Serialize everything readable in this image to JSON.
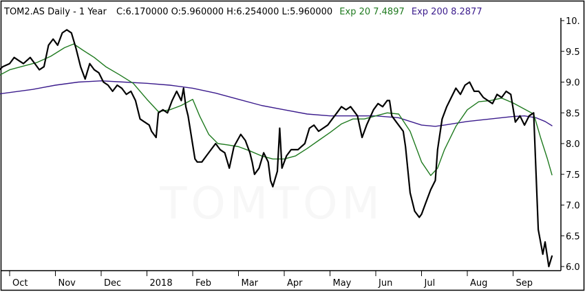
{
  "header": {
    "title": "TOM2.AS Daily -  1 Year",
    "ohlc": "C:6.170000 O:5.960000 H:6.254000 L:5.960000",
    "ema20_label": "Exp 20 7.4897",
    "ema200_label": "Exp 200 8.2877"
  },
  "watermark": "TOMTOM",
  "colors": {
    "price": "#000000",
    "ema20": "#1f7a1f",
    "ema200": "#3a1a8c",
    "frame": "#000000"
  },
  "chart_data": {
    "type": "line",
    "title": "TOM2.AS Daily -  1 Year",
    "ylim": [
      6.0,
      10.0
    ],
    "y_ticks": [
      "10.",
      "9.5",
      "9.0",
      "8.5",
      "8.0",
      "7.5",
      "7.0",
      "6.5",
      "6.0"
    ],
    "x_ticks": [
      "Oct",
      "Nov",
      "Dec",
      "2018",
      "Feb",
      "Mar",
      "Apr",
      "May",
      "Jun",
      "Jul",
      "Aug",
      "Sep"
    ],
    "x_domain": [
      0,
      12
    ],
    "grid": false,
    "series": [
      {
        "name": "TOM2.AS",
        "key": "price",
        "points": [
          [
            -0.3,
            9.15
          ],
          [
            -0.15,
            9.25
          ],
          [
            0.0,
            9.3
          ],
          [
            0.1,
            9.4
          ],
          [
            0.2,
            9.35
          ],
          [
            0.3,
            9.3
          ],
          [
            0.45,
            9.4
          ],
          [
            0.55,
            9.3
          ],
          [
            0.65,
            9.2
          ],
          [
            0.75,
            9.25
          ],
          [
            0.85,
            9.6
          ],
          [
            0.95,
            9.7
          ],
          [
            1.05,
            9.6
          ],
          [
            1.15,
            9.8
          ],
          [
            1.25,
            9.85
          ],
          [
            1.35,
            9.8
          ],
          [
            1.45,
            9.55
          ],
          [
            1.55,
            9.25
          ],
          [
            1.65,
            9.05
          ],
          [
            1.75,
            9.3
          ],
          [
            1.85,
            9.2
          ],
          [
            1.95,
            9.15
          ],
          [
            2.05,
            9.0
          ],
          [
            2.15,
            8.95
          ],
          [
            2.25,
            8.85
          ],
          [
            2.35,
            8.95
          ],
          [
            2.45,
            8.9
          ],
          [
            2.55,
            8.8
          ],
          [
            2.65,
            8.85
          ],
          [
            2.75,
            8.7
          ],
          [
            2.85,
            8.4
          ],
          [
            2.95,
            8.35
          ],
          [
            3.05,
            8.3
          ],
          [
            3.1,
            8.2
          ],
          [
            3.2,
            8.1
          ],
          [
            3.25,
            8.5
          ],
          [
            3.35,
            8.55
          ],
          [
            3.45,
            8.5
          ],
          [
            3.55,
            8.7
          ],
          [
            3.65,
            8.85
          ],
          [
            3.75,
            8.7
          ],
          [
            3.8,
            8.9
          ],
          [
            3.85,
            8.6
          ],
          [
            3.9,
            8.45
          ],
          [
            4.05,
            7.75
          ],
          [
            4.1,
            7.7
          ],
          [
            4.2,
            7.7
          ],
          [
            4.3,
            7.8
          ],
          [
            4.4,
            7.9
          ],
          [
            4.5,
            8.0
          ],
          [
            4.6,
            7.9
          ],
          [
            4.7,
            7.85
          ],
          [
            4.8,
            7.6
          ],
          [
            4.9,
            7.95
          ],
          [
            5.05,
            8.15
          ],
          [
            5.15,
            8.05
          ],
          [
            5.25,
            7.85
          ],
          [
            5.3,
            7.7
          ],
          [
            5.35,
            7.5
          ],
          [
            5.45,
            7.6
          ],
          [
            5.55,
            7.85
          ],
          [
            5.65,
            7.7
          ],
          [
            5.7,
            7.4
          ],
          [
            5.75,
            7.3
          ],
          [
            5.85,
            7.55
          ],
          [
            5.9,
            8.25
          ],
          [
            5.95,
            7.6
          ],
          [
            6.05,
            7.8
          ],
          [
            6.15,
            7.9
          ],
          [
            6.3,
            7.9
          ],
          [
            6.45,
            8.0
          ],
          [
            6.55,
            8.25
          ],
          [
            6.65,
            8.3
          ],
          [
            6.75,
            8.2
          ],
          [
            6.85,
            8.25
          ],
          [
            6.95,
            8.3
          ],
          [
            7.05,
            8.4
          ],
          [
            7.15,
            8.5
          ],
          [
            7.25,
            8.6
          ],
          [
            7.35,
            8.55
          ],
          [
            7.45,
            8.6
          ],
          [
            7.5,
            8.55
          ],
          [
            7.6,
            8.45
          ],
          [
            7.7,
            8.1
          ],
          [
            7.8,
            8.3
          ],
          [
            7.95,
            8.55
          ],
          [
            8.05,
            8.65
          ],
          [
            8.15,
            8.6
          ],
          [
            8.25,
            8.7
          ],
          [
            8.3,
            8.7
          ],
          [
            8.35,
            8.45
          ],
          [
            8.45,
            8.35
          ],
          [
            8.6,
            8.2
          ],
          [
            8.65,
            7.95
          ],
          [
            8.75,
            7.2
          ],
          [
            8.85,
            6.9
          ],
          [
            8.95,
            6.8
          ],
          [
            9.0,
            6.85
          ],
          [
            9.1,
            7.05
          ],
          [
            9.2,
            7.25
          ],
          [
            9.3,
            7.4
          ],
          [
            9.35,
            7.9
          ],
          [
            9.45,
            8.4
          ],
          [
            9.55,
            8.6
          ],
          [
            9.65,
            8.75
          ],
          [
            9.75,
            8.9
          ],
          [
            9.85,
            8.8
          ],
          [
            9.95,
            8.95
          ],
          [
            10.05,
            9.0
          ],
          [
            10.15,
            8.85
          ],
          [
            10.25,
            8.85
          ],
          [
            10.35,
            8.75
          ],
          [
            10.45,
            8.7
          ],
          [
            10.55,
            8.65
          ],
          [
            10.65,
            8.8
          ],
          [
            10.75,
            8.75
          ],
          [
            10.85,
            8.85
          ],
          [
            10.95,
            8.8
          ],
          [
            11.05,
            8.35
          ],
          [
            11.15,
            8.45
          ],
          [
            11.25,
            8.3
          ],
          [
            11.35,
            8.45
          ],
          [
            11.45,
            8.5
          ],
          [
            11.55,
            6.6
          ],
          [
            11.65,
            6.2
          ],
          [
            11.7,
            6.4
          ],
          [
            11.78,
            6.0
          ],
          [
            11.85,
            6.17
          ]
        ]
      },
      {
        "name": "Exp 20",
        "key": "ema20",
        "points": [
          [
            -0.3,
            9.08
          ],
          [
            0.0,
            9.2
          ],
          [
            0.3,
            9.26
          ],
          [
            0.6,
            9.32
          ],
          [
            0.9,
            9.42
          ],
          [
            1.2,
            9.56
          ],
          [
            1.4,
            9.62
          ],
          [
            1.6,
            9.52
          ],
          [
            1.85,
            9.4
          ],
          [
            2.1,
            9.25
          ],
          [
            2.4,
            9.12
          ],
          [
            2.7,
            8.98
          ],
          [
            3.0,
            8.72
          ],
          [
            3.25,
            8.52
          ],
          [
            3.5,
            8.55
          ],
          [
            3.75,
            8.62
          ],
          [
            4.0,
            8.72
          ],
          [
            4.15,
            8.45
          ],
          [
            4.35,
            8.15
          ],
          [
            4.55,
            8.0
          ],
          [
            4.75,
            7.98
          ],
          [
            5.0,
            7.95
          ],
          [
            5.25,
            7.88
          ],
          [
            5.5,
            7.8
          ],
          [
            5.75,
            7.75
          ],
          [
            6.0,
            7.75
          ],
          [
            6.25,
            7.8
          ],
          [
            6.5,
            7.92
          ],
          [
            6.75,
            8.05
          ],
          [
            7.0,
            8.18
          ],
          [
            7.25,
            8.32
          ],
          [
            7.5,
            8.4
          ],
          [
            7.75,
            8.4
          ],
          [
            8.0,
            8.45
          ],
          [
            8.25,
            8.5
          ],
          [
            8.5,
            8.48
          ],
          [
            8.75,
            8.2
          ],
          [
            9.0,
            7.7
          ],
          [
            9.2,
            7.48
          ],
          [
            9.35,
            7.6
          ],
          [
            9.5,
            7.9
          ],
          [
            9.75,
            8.28
          ],
          [
            10.0,
            8.55
          ],
          [
            10.25,
            8.68
          ],
          [
            10.5,
            8.7
          ],
          [
            10.75,
            8.74
          ],
          [
            11.0,
            8.66
          ],
          [
            11.25,
            8.56
          ],
          [
            11.45,
            8.48
          ],
          [
            11.6,
            8.1
          ],
          [
            11.75,
            7.75
          ],
          [
            11.85,
            7.49
          ]
        ]
      },
      {
        "name": "Exp 200",
        "key": "ema200",
        "points": [
          [
            -0.3,
            8.8
          ],
          [
            0.5,
            8.88
          ],
          [
            1.0,
            8.95
          ],
          [
            1.5,
            9.0
          ],
          [
            2.0,
            9.02
          ],
          [
            2.5,
            9.0
          ],
          [
            3.0,
            8.98
          ],
          [
            3.5,
            8.95
          ],
          [
            4.0,
            8.9
          ],
          [
            4.5,
            8.82
          ],
          [
            5.0,
            8.72
          ],
          [
            5.5,
            8.62
          ],
          [
            6.0,
            8.55
          ],
          [
            6.5,
            8.48
          ],
          [
            7.0,
            8.45
          ],
          [
            7.5,
            8.45
          ],
          [
            8.0,
            8.45
          ],
          [
            8.5,
            8.42
          ],
          [
            9.0,
            8.3
          ],
          [
            9.3,
            8.28
          ],
          [
            9.5,
            8.3
          ],
          [
            10.0,
            8.36
          ],
          [
            10.5,
            8.4
          ],
          [
            11.0,
            8.44
          ],
          [
            11.25,
            8.45
          ],
          [
            11.5,
            8.42
          ],
          [
            11.7,
            8.36
          ],
          [
            11.85,
            8.29
          ]
        ]
      }
    ]
  }
}
